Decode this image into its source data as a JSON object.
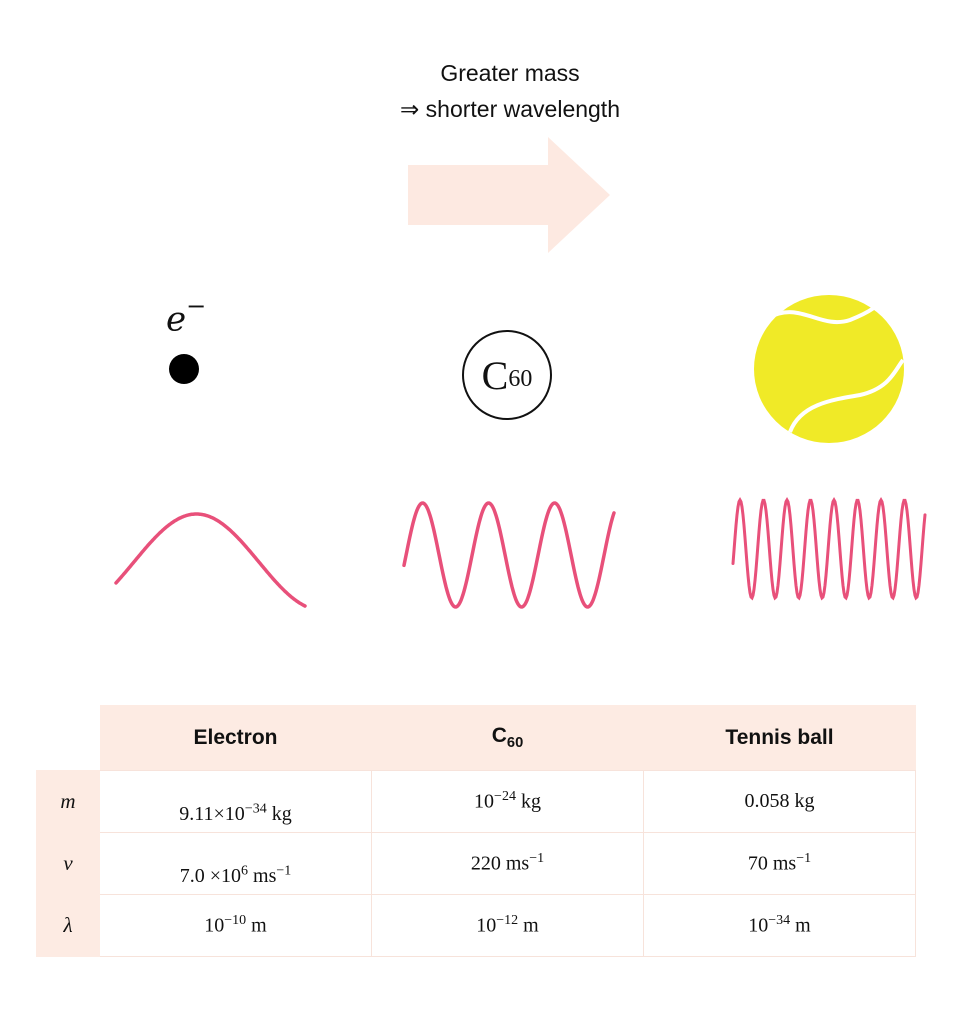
{
  "caption": {
    "line1": "Greater mass",
    "line2": "⇒ shorter wavelength"
  },
  "colors": {
    "arrow": "#fde9e1",
    "wave": "#e8507a",
    "ball": "#f0ea27",
    "header_bg": "#fdebe3"
  },
  "particles": {
    "electron_symbol": "e",
    "electron_charge": "−",
    "c60_base": "C",
    "c60_sub": "60"
  },
  "table": {
    "headers": [
      {
        "base": "Electron",
        "sub": ""
      },
      {
        "base": "C",
        "sub": "60"
      },
      {
        "base": "Tennis ball",
        "sub": ""
      }
    ],
    "rows": [
      {
        "label": "m",
        "cells": [
          {
            "pre": "9.11×10",
            "exp": "−34",
            "post": " kg"
          },
          {
            "pre": "10",
            "exp": "−24",
            "post": " kg"
          },
          {
            "pre": "0.058 kg",
            "exp": "",
            "post": ""
          }
        ]
      },
      {
        "label": "v",
        "cells": [
          {
            "pre": "7.0 ×10",
            "exp": "6",
            "post": " ms"
          },
          {
            "pre": "220 ms",
            "exp": "−1",
            "post": ""
          },
          {
            "pre": "70 ms",
            "exp": "−1",
            "post": ""
          }
        ],
        "extra_exp": "−1"
      },
      {
        "label": "λ",
        "cells": [
          {
            "pre": "10",
            "exp": "−10",
            "post": " m"
          },
          {
            "pre": "10",
            "exp": "−12",
            "post": " m"
          },
          {
            "pre": "10",
            "exp": "−34",
            "post": " m"
          }
        ]
      }
    ]
  }
}
